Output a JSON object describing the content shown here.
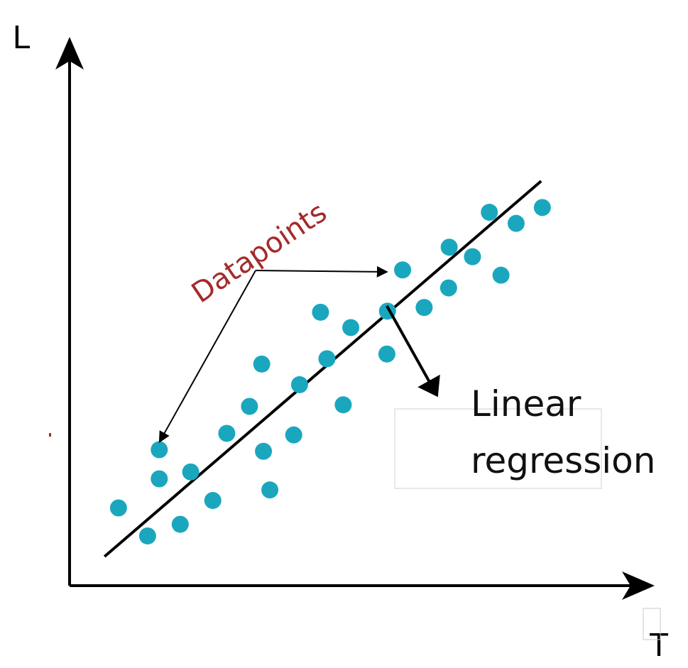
{
  "chart_data": {
    "type": "scatter",
    "xlabel": "T",
    "ylabel": "L",
    "xlim": [
      0,
      100
    ],
    "ylim": [
      0,
      100
    ],
    "grid": false,
    "points": [
      {
        "x": 8.4,
        "y": 14.7
      },
      {
        "x": 13.4,
        "y": 9.4
      },
      {
        "x": 15.4,
        "y": 20.2
      },
      {
        "x": 15.4,
        "y": 25.7
      },
      {
        "x": 19.0,
        "y": 11.6
      },
      {
        "x": 20.8,
        "y": 21.5
      },
      {
        "x": 24.6,
        "y": 16.1
      },
      {
        "x": 27.0,
        "y": 28.8
      },
      {
        "x": 30.9,
        "y": 33.9
      },
      {
        "x": 33.3,
        "y": 25.4
      },
      {
        "x": 33.0,
        "y": 41.9
      },
      {
        "x": 34.4,
        "y": 18.1
      },
      {
        "x": 38.5,
        "y": 28.5
      },
      {
        "x": 39.5,
        "y": 38.0
      },
      {
        "x": 43.1,
        "y": 51.7
      },
      {
        "x": 44.2,
        "y": 42.9
      },
      {
        "x": 47.0,
        "y": 34.2
      },
      {
        "x": 48.3,
        "y": 48.8
      },
      {
        "x": 54.5,
        "y": 43.8
      },
      {
        "x": 54.6,
        "y": 51.9
      },
      {
        "x": 57.2,
        "y": 59.7
      },
      {
        "x": 60.9,
        "y": 52.6
      },
      {
        "x": 65.1,
        "y": 56.3
      },
      {
        "x": 65.2,
        "y": 64.0
      },
      {
        "x": 69.2,
        "y": 62.2
      },
      {
        "x": 74.1,
        "y": 58.7
      },
      {
        "x": 72.1,
        "y": 70.6
      },
      {
        "x": 76.7,
        "y": 68.5
      },
      {
        "x": 81.2,
        "y": 71.5
      }
    ],
    "regression_line": {
      "x": [
        6.0,
        81.0
      ],
      "y": [
        5.5,
        76.5
      ]
    },
    "point_color": "#1aa7be",
    "line_color": "#000000",
    "annotations": [
      {
        "text": "Datapoints",
        "color": "#a52a2a",
        "targets": [
          {
            "x": 15.2,
            "y": 26.1
          },
          {
            "x": 56.0,
            "y": 59.6
          }
        ]
      },
      {
        "text": "Linear regression",
        "color": "#111111",
        "target": {
          "x": 54.5,
          "y": 52.9
        }
      }
    ]
  },
  "labels": {
    "datapoints": "Datapoints",
    "linear_line1": "Linear",
    "linear_line2": "regression"
  }
}
